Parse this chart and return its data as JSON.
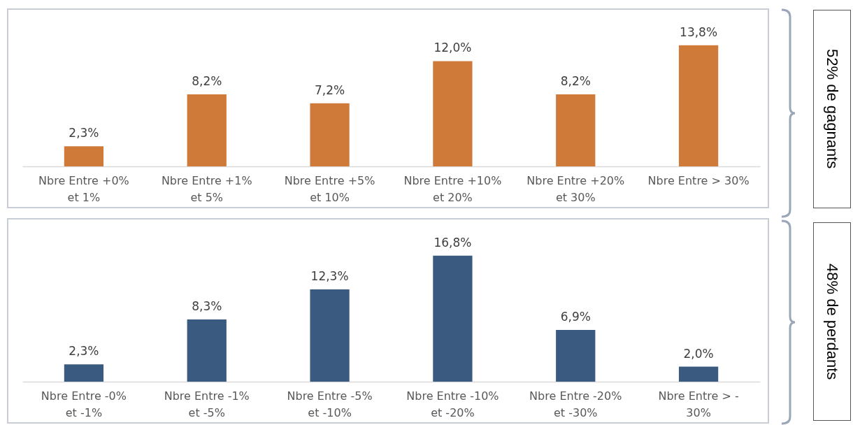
{
  "chart_data": [
    {
      "type": "bar",
      "categories": [
        "Nbre Entre +0%\net 1%",
        "Nbre Entre +1%\net 5%",
        "Nbre Entre +5%\net 10%",
        "Nbre Entre +10%\net 20%",
        "Nbre Entre +20%\net 30%",
        "Nbre Entre > 30%"
      ],
      "values": [
        2.3,
        8.2,
        7.2,
        12.0,
        8.2,
        13.8
      ],
      "value_labels": [
        "2,3%",
        "8,2%",
        "7,2%",
        "12,0%",
        "8,2%",
        "13,8%"
      ],
      "color": "#d07a3a",
      "grid": false,
      "annotations": [
        "52% de gagnants"
      ]
    },
    {
      "type": "bar",
      "categories": [
        "Nbre Entre -0%\net -1%",
        "Nbre Entre -1%\net -5%",
        "Nbre Entre -5%\net -10%",
        "Nbre Entre -10%\net -20%",
        "Nbre Entre -20%\net -30%",
        "Nbre Entre > -\n30%"
      ],
      "values": [
        2.3,
        8.3,
        12.3,
        16.8,
        6.9,
        2.0
      ],
      "value_labels": [
        "2,3%",
        "8,3%",
        "12,3%",
        "16,8%",
        "6,9%",
        "2,0%"
      ],
      "color": "#3a5a80",
      "grid": false,
      "annotations": [
        "48% de perdants"
      ]
    }
  ]
}
